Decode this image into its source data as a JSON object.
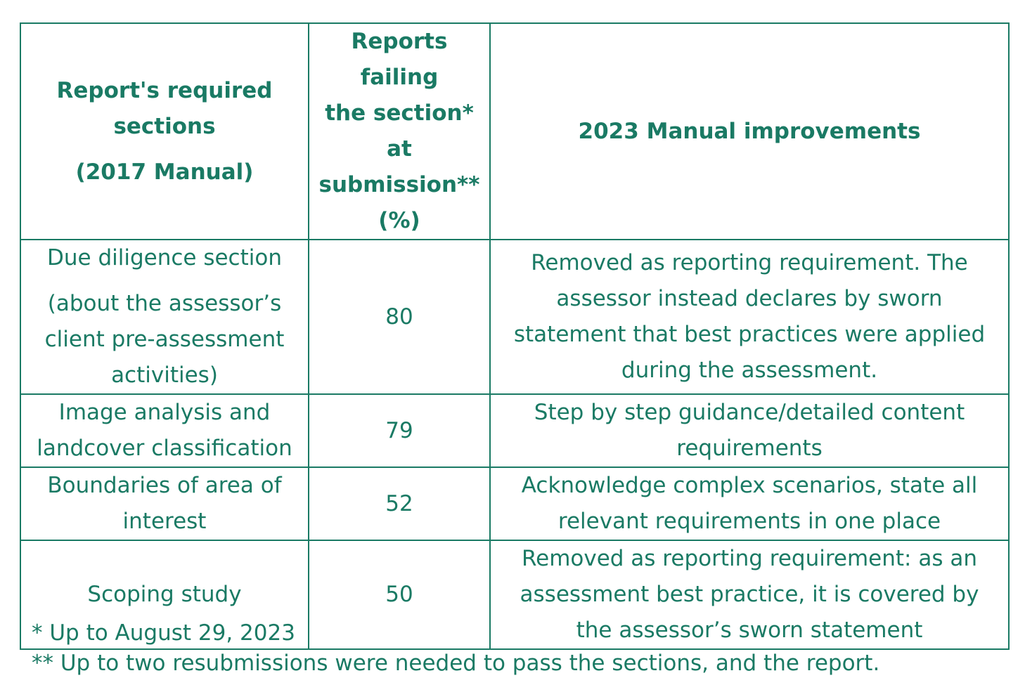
{
  "table": {
    "headers": {
      "col1": [
        "Report's required",
        "sections",
        "(2017 Manual)"
      ],
      "col2": [
        "Reports failing",
        "the section*",
        "at",
        "submission**",
        "(%)"
      ],
      "col3": [
        "2023 Manual improvements"
      ]
    },
    "rows": [
      {
        "section": [
          "Due diligence section",
          "(about the assessor’s",
          "client pre-assessment",
          "activities)"
        ],
        "percent": "80",
        "improvement": [
          "Removed as reporting requirement. The",
          "assessor instead declares by sworn",
          "statement that best practices were applied",
          "during the assessment."
        ]
      },
      {
        "section": [
          "Image analysis and",
          "landcover classification"
        ],
        "percent": "79",
        "improvement": [
          "Step by step guidance/detailed content",
          "requirements"
        ]
      },
      {
        "section": [
          "Boundaries of area of",
          "interest"
        ],
        "percent": "52",
        "improvement": [
          "Acknowledge complex scenarios, state all",
          "relevant requirements in one place"
        ]
      },
      {
        "section": [
          "Scoping study"
        ],
        "percent": "50",
        "improvement": [
          "Removed as reporting requirement: as an",
          "assessment best practice, it is covered by",
          "the assessor’s sworn statement"
        ]
      }
    ]
  },
  "footnotes": {
    "note1": "* Up to August 29, 2023",
    "note2": "** Up to two resubmissions were needed to pass the sections, and the report."
  },
  "colors": {
    "accent": "#1a7a64",
    "background": "#ffffff"
  }
}
